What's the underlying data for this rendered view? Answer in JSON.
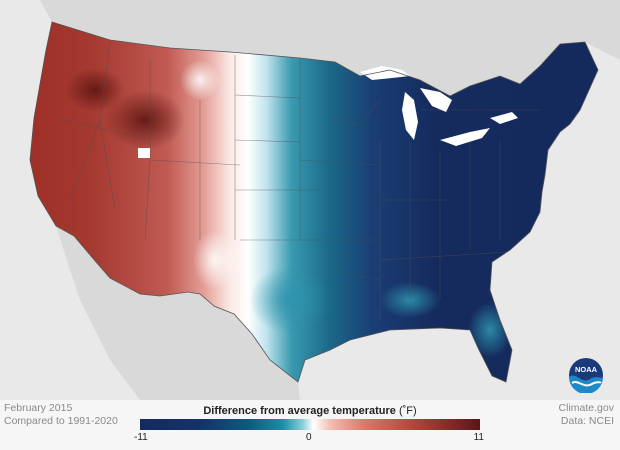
{
  "map": {
    "date": "February 2015",
    "baseline": "Compared to 1991-2020",
    "source_site": "Climate.gov",
    "source_data": "Data: NCEI",
    "logo_text": "NOAA"
  },
  "legend": {
    "title_bold": "Difference from average temperature",
    "title_unit": "(˚F)",
    "min_label": "-11",
    "mid_label": "0",
    "max_label": "11",
    "color_cold": "#142a5c",
    "color_mid": "#ffffff",
    "color_warm": "#5a1616"
  },
  "colors": {
    "land_outside": "#d8d8d8",
    "water": "#e9e9e9",
    "state_borders": "#5a5a5a"
  }
}
